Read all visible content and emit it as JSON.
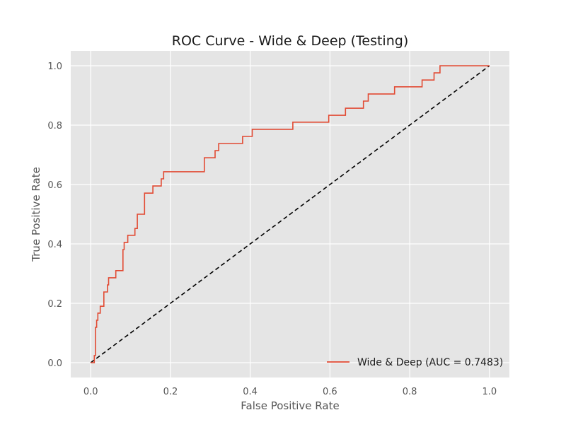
{
  "chart_data": {
    "type": "line",
    "title": "ROC Curve - Wide & Deep (Testing)",
    "xlabel": "False Positive Rate",
    "ylabel": "True Positive Rate",
    "xlim": [
      -0.05,
      1.05
    ],
    "ylim": [
      -0.05,
      1.05
    ],
    "xticks": [
      "0.0",
      "0.2",
      "0.4",
      "0.6",
      "0.8",
      "1.0"
    ],
    "yticks": [
      "0.0",
      "0.2",
      "0.4",
      "0.6",
      "0.8",
      "1.0"
    ],
    "grid": true,
    "legend_position": "lower-right",
    "colors": {
      "roc": "#e24a33",
      "diagonal": "#000000",
      "plot_bg": "#e5e5e5",
      "grid": "#ffffff"
    },
    "series": [
      {
        "name": "Wide & Deep (AUC = 0.7483)",
        "x": [
          0.0,
          0.009,
          0.009,
          0.012,
          0.012,
          0.015,
          0.015,
          0.018,
          0.018,
          0.024,
          0.024,
          0.033,
          0.033,
          0.042,
          0.042,
          0.045,
          0.045,
          0.063,
          0.063,
          0.081,
          0.081,
          0.084,
          0.084,
          0.093,
          0.093,
          0.111,
          0.111,
          0.117,
          0.117,
          0.135,
          0.135,
          0.138,
          0.138,
          0.156,
          0.156,
          0.177,
          0.177,
          0.183,
          0.183,
          0.285,
          0.285,
          0.312,
          0.312,
          0.321,
          0.321,
          0.381,
          0.381,
          0.405,
          0.405,
          0.507,
          0.507,
          0.597,
          0.597,
          0.639,
          0.639,
          0.684,
          0.684,
          0.696,
          0.696,
          0.762,
          0.762,
          0.831,
          0.831,
          0.861,
          0.861,
          0.876,
          0.876,
          1.0
        ],
        "y": [
          0.0,
          0.0,
          0.024,
          0.024,
          0.119,
          0.119,
          0.143,
          0.143,
          0.167,
          0.167,
          0.19,
          0.19,
          0.238,
          0.238,
          0.262,
          0.262,
          0.286,
          0.286,
          0.31,
          0.31,
          0.381,
          0.381,
          0.405,
          0.405,
          0.429,
          0.429,
          0.452,
          0.452,
          0.5,
          0.5,
          0.571,
          0.571,
          0.571,
          0.571,
          0.595,
          0.595,
          0.619,
          0.619,
          0.643,
          0.643,
          0.69,
          0.69,
          0.714,
          0.714,
          0.738,
          0.738,
          0.762,
          0.762,
          0.786,
          0.786,
          0.81,
          0.81,
          0.833,
          0.833,
          0.857,
          0.857,
          0.881,
          0.881,
          0.905,
          0.905,
          0.929,
          0.929,
          0.952,
          0.952,
          0.976,
          0.976,
          1.0,
          1.0
        ]
      },
      {
        "name": "",
        "style": "dashed",
        "x": [
          0.0,
          1.0
        ],
        "y": [
          0.0,
          1.0
        ]
      }
    ]
  }
}
